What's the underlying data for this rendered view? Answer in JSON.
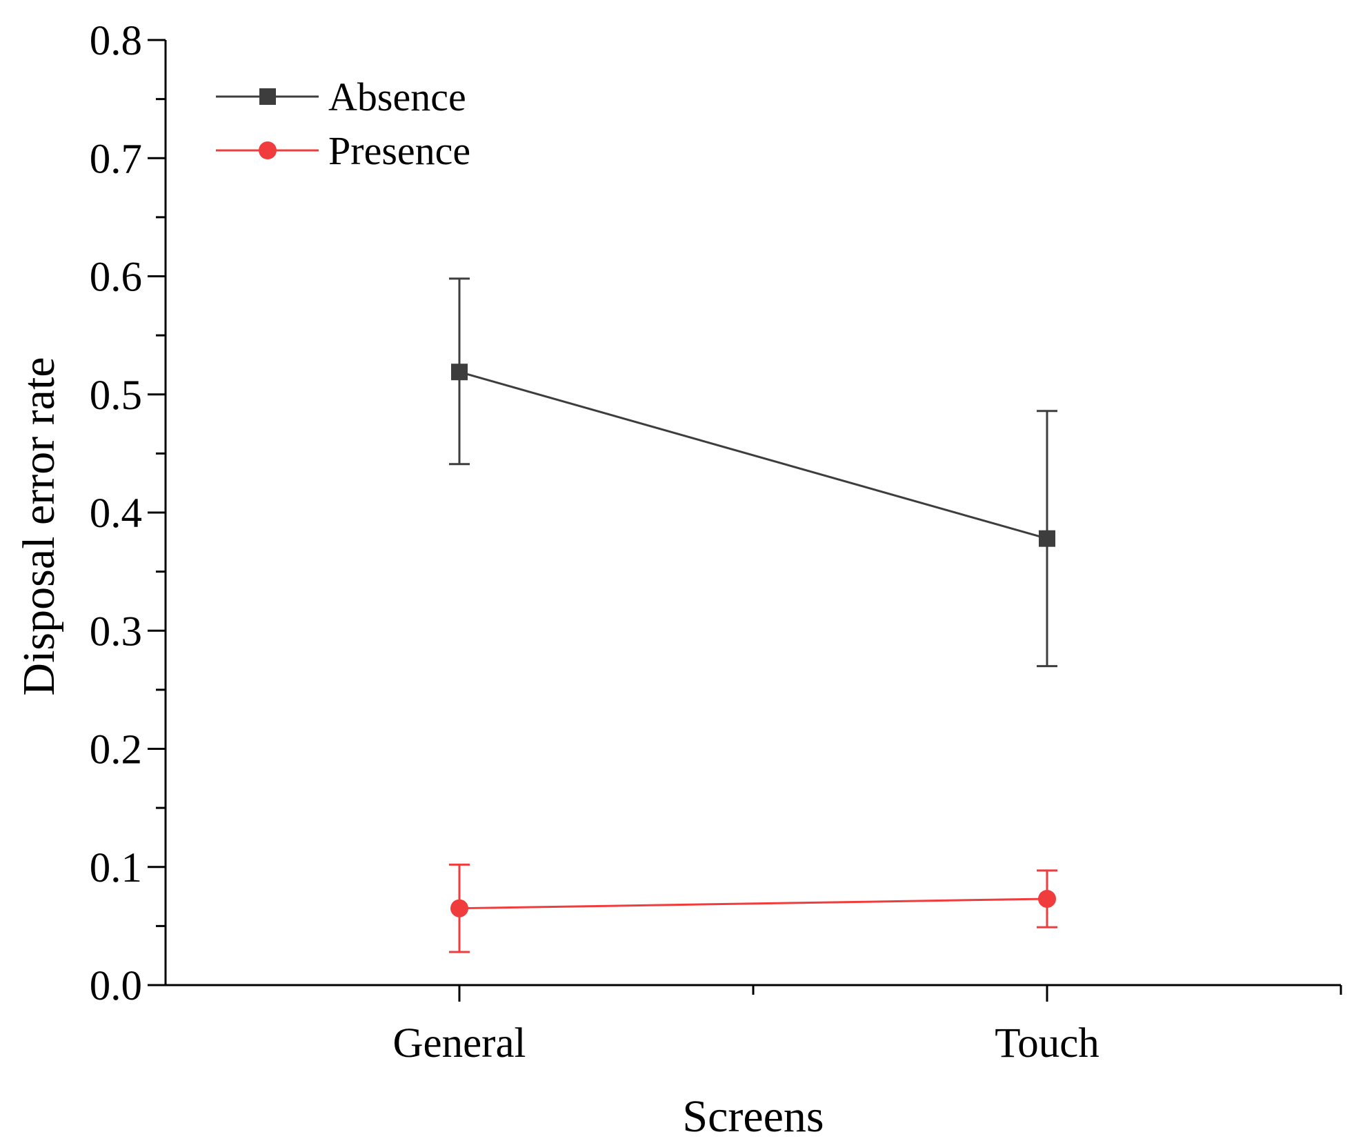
{
  "chart_data": {
    "type": "line",
    "title": "",
    "xlabel": "Screens",
    "ylabel": "Disposal error rate",
    "categories": [
      "General",
      "Touch"
    ],
    "ylim": [
      0.0,
      0.8
    ],
    "yticks": [
      "0.0",
      "0.1",
      "0.2",
      "0.3",
      "0.4",
      "0.5",
      "0.6",
      "0.7",
      "0.8"
    ],
    "grid": false,
    "legend_position": "top-left",
    "series": [
      {
        "name": "Absence",
        "color": "#3d3d3d",
        "marker": "square",
        "values": [
          0.519,
          0.378
        ],
        "error_low": [
          0.441,
          0.27
        ],
        "error_high": [
          0.598,
          0.486
        ]
      },
      {
        "name": "Presence",
        "color": "#f03c3c",
        "marker": "circle",
        "values": [
          0.065,
          0.073
        ],
        "error_low": [
          0.028,
          0.049
        ],
        "error_high": [
          0.102,
          0.097
        ]
      }
    ]
  }
}
